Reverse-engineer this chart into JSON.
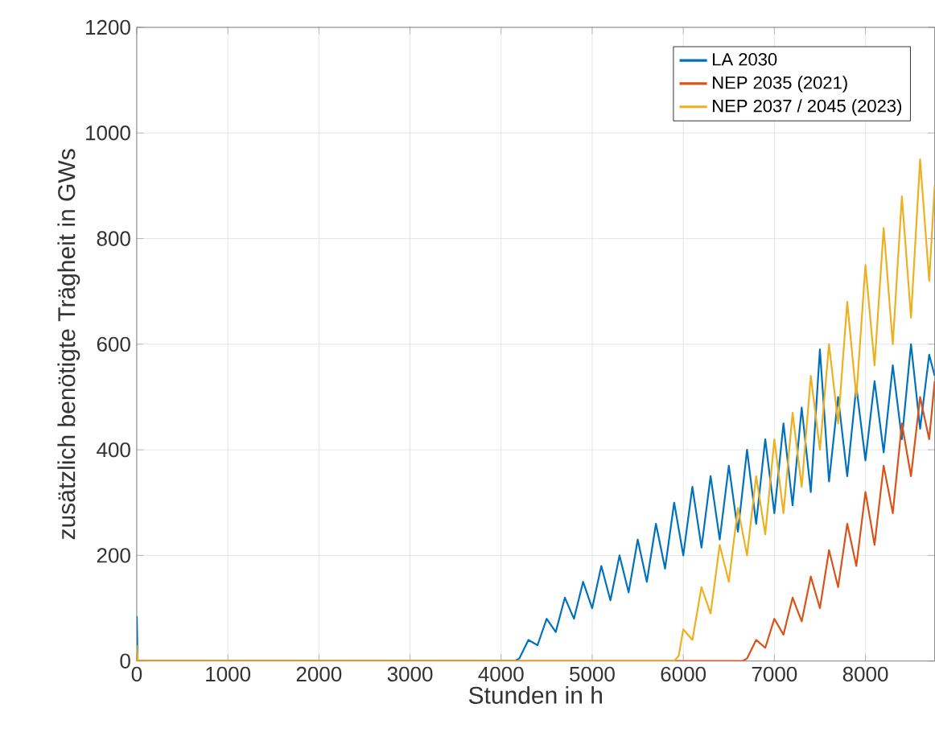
{
  "chart_data": {
    "type": "line",
    "xlabel": "Stunden in h",
    "ylabel": "zusätzlich benötigte Trägheit in GWs",
    "xlim": [
      0,
      8760
    ],
    "xticks": [
      0,
      1000,
      2000,
      3000,
      4000,
      5000,
      6000,
      7000,
      8000
    ],
    "ylim": [
      0,
      1200
    ],
    "yticks": [
      0,
      200,
      400,
      600,
      800,
      1000,
      1200
    ],
    "grid": true,
    "legend": "top right",
    "line_style": "solid",
    "marker": "none",
    "series": [
      {
        "name": "LA 2030",
        "color": "#0072bd",
        "x": [
          0,
          10,
          4150,
          4200,
          4300,
          4400,
          4500,
          4600,
          4700,
          4800,
          4900,
          5000,
          5100,
          5200,
          5300,
          5400,
          5500,
          5600,
          5700,
          5800,
          5900,
          6000,
          6100,
          6200,
          6300,
          6400,
          6500,
          6600,
          6700,
          6800,
          6900,
          7000,
          7100,
          7200,
          7300,
          7400,
          7500,
          7600,
          7700,
          7800,
          7900,
          8000,
          8100,
          8200,
          8300,
          8400,
          8500,
          8600,
          8700,
          8760
        ],
        "values": [
          85,
          0,
          0,
          5,
          40,
          30,
          80,
          55,
          120,
          80,
          150,
          100,
          180,
          115,
          200,
          130,
          230,
          150,
          260,
          175,
          300,
          200,
          330,
          215,
          350,
          230,
          370,
          245,
          400,
          260,
          420,
          280,
          450,
          295,
          480,
          320,
          590,
          340,
          500,
          350,
          520,
          380,
          530,
          395,
          560,
          420,
          600,
          440,
          580,
          540
        ]
      },
      {
        "name": "NEP 2035 (2021)",
        "color": "#d95319",
        "x": [
          0,
          6650,
          6700,
          6800,
          6900,
          7000,
          7100,
          7200,
          7300,
          7400,
          7500,
          7600,
          7700,
          7800,
          7900,
          8000,
          8100,
          8200,
          8300,
          8400,
          8500,
          8600,
          8700,
          8760
        ],
        "values": [
          0,
          0,
          5,
          40,
          25,
          80,
          50,
          120,
          75,
          160,
          100,
          210,
          140,
          260,
          180,
          320,
          220,
          370,
          280,
          450,
          350,
          500,
          420,
          530
        ]
      },
      {
        "name": "NEP 2037 / 2045 (2023)",
        "color": "#edb120",
        "x": [
          0,
          10,
          5900,
          5950,
          6000,
          6100,
          6200,
          6300,
          6400,
          6500,
          6600,
          6700,
          6800,
          6900,
          7000,
          7100,
          7200,
          7300,
          7400,
          7500,
          7600,
          7700,
          7800,
          7900,
          8000,
          8100,
          8200,
          8300,
          8400,
          8500,
          8600,
          8700,
          8760
        ],
        "values": [
          30,
          0,
          0,
          10,
          60,
          40,
          140,
          90,
          220,
          150,
          290,
          200,
          350,
          240,
          420,
          280,
          470,
          330,
          540,
          400,
          600,
          450,
          680,
          500,
          750,
          560,
          820,
          600,
          880,
          650,
          950,
          720,
          900
        ]
      }
    ]
  }
}
